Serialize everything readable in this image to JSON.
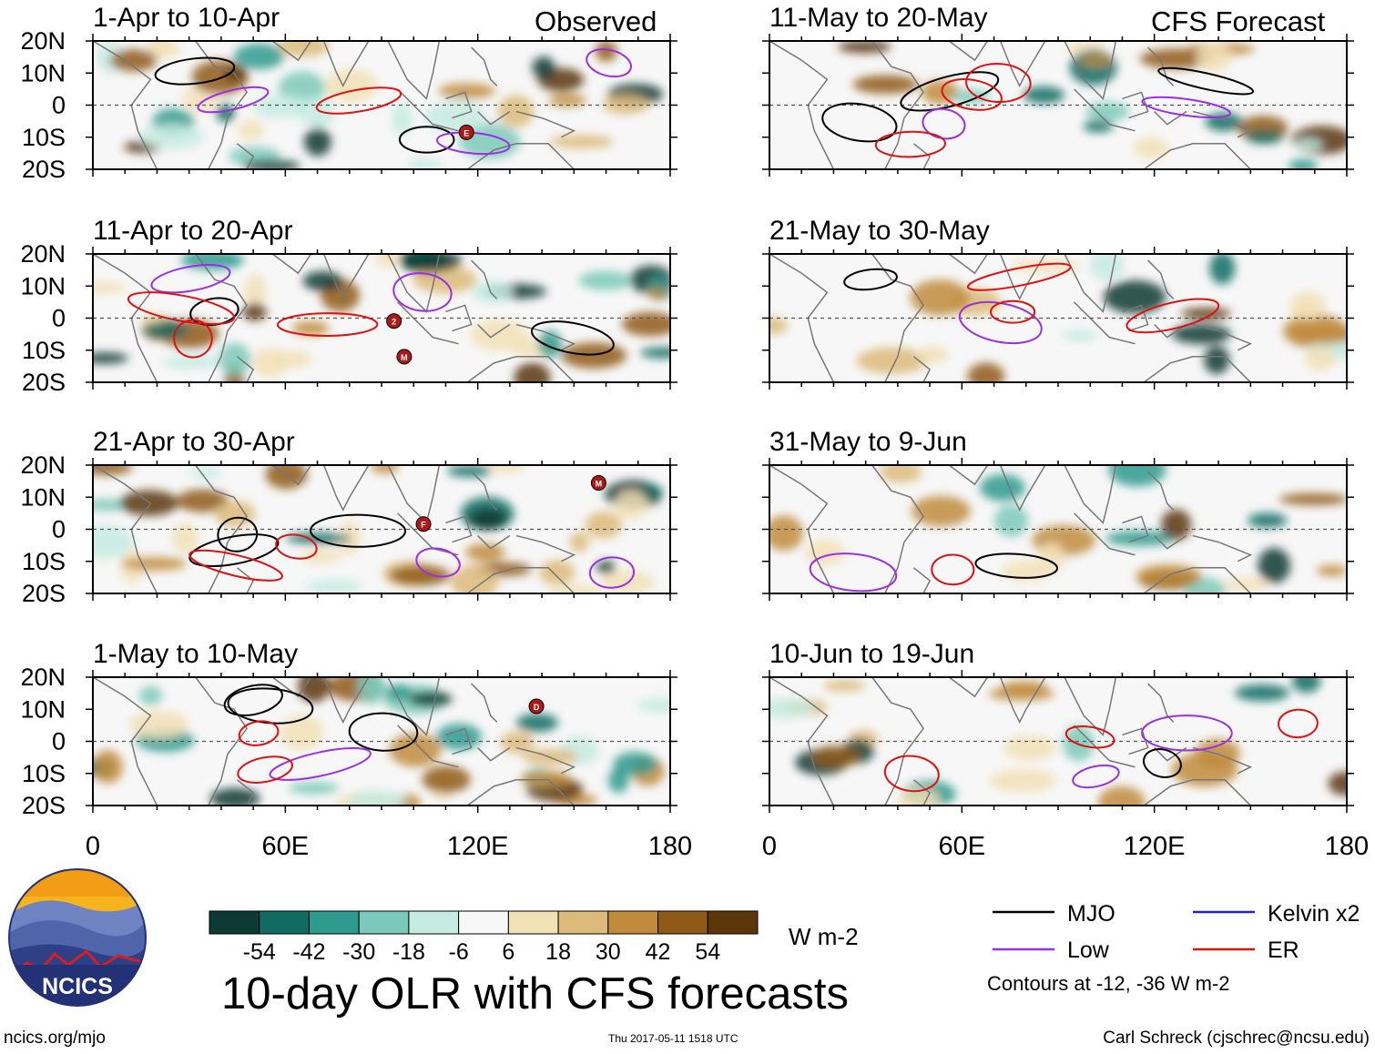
{
  "header": {
    "observed_label": "Observed",
    "forecast_label": "CFS Forecast"
  },
  "chart_data": {
    "type": "heatmap",
    "title": "10-day OLR with CFS forecasts",
    "variable": "OLR anomaly",
    "units": "W m-2",
    "x_range": [
      0,
      180
    ],
    "y_range": [
      -20,
      20
    ],
    "x_ticks": [
      "0",
      "60E",
      "120E",
      "180"
    ],
    "y_ticks": [
      "20N",
      "10N",
      "0",
      "10S",
      "20S"
    ],
    "colorbar": {
      "labels": [
        "-54",
        "-42",
        "-30",
        "-18",
        "-6",
        "6",
        "18",
        "30",
        "42",
        "54"
      ],
      "colors": [
        "#0d3b33",
        "#116b63",
        "#2f9a8e",
        "#7cc9b9",
        "#c6ebe1",
        "#f7f7f7",
        "#f2e0b6",
        "#dcba7a",
        "#c08b3d",
        "#8f5a16",
        "#5a3608"
      ]
    },
    "panels": [
      {
        "period": "1-Apr to 10-Apr",
        "kind": "observed",
        "tcs": [
          "E"
        ]
      },
      {
        "period": "11-Apr to 20-Apr",
        "kind": "observed",
        "tcs": [
          "M",
          "2"
        ]
      },
      {
        "period": "21-Apr to 30-Apr",
        "kind": "observed",
        "tcs": [
          "M",
          "F"
        ]
      },
      {
        "period": "1-May to 10-May",
        "kind": "observed",
        "tcs": [
          "D"
        ]
      },
      {
        "period": "11-May to 20-May",
        "kind": "forecast",
        "tcs": []
      },
      {
        "period": "21-May to 30-May",
        "kind": "forecast",
        "tcs": []
      },
      {
        "period": "31-May to 9-Jun",
        "kind": "forecast",
        "tcs": []
      },
      {
        "period": "10-Jun to 19-Jun",
        "kind": "forecast",
        "tcs": []
      }
    ],
    "legend": [
      {
        "label": "MJO",
        "color": "#000000"
      },
      {
        "label": "Kelvin x2",
        "color": "#2222cc"
      },
      {
        "label": "Low",
        "color": "#9b30e0"
      },
      {
        "label": "ER",
        "color": "#dd1111"
      }
    ],
    "contours_note": "Contours at -12, -36 W m-2"
  },
  "logo": {
    "text": "NCICS"
  },
  "footer": {
    "url": "ncics.org/mjo",
    "timestamp": "Thu 2017-05-11 1518 UTC",
    "author": "Carl Schreck (cjschrec@ncsu.edu)"
  }
}
